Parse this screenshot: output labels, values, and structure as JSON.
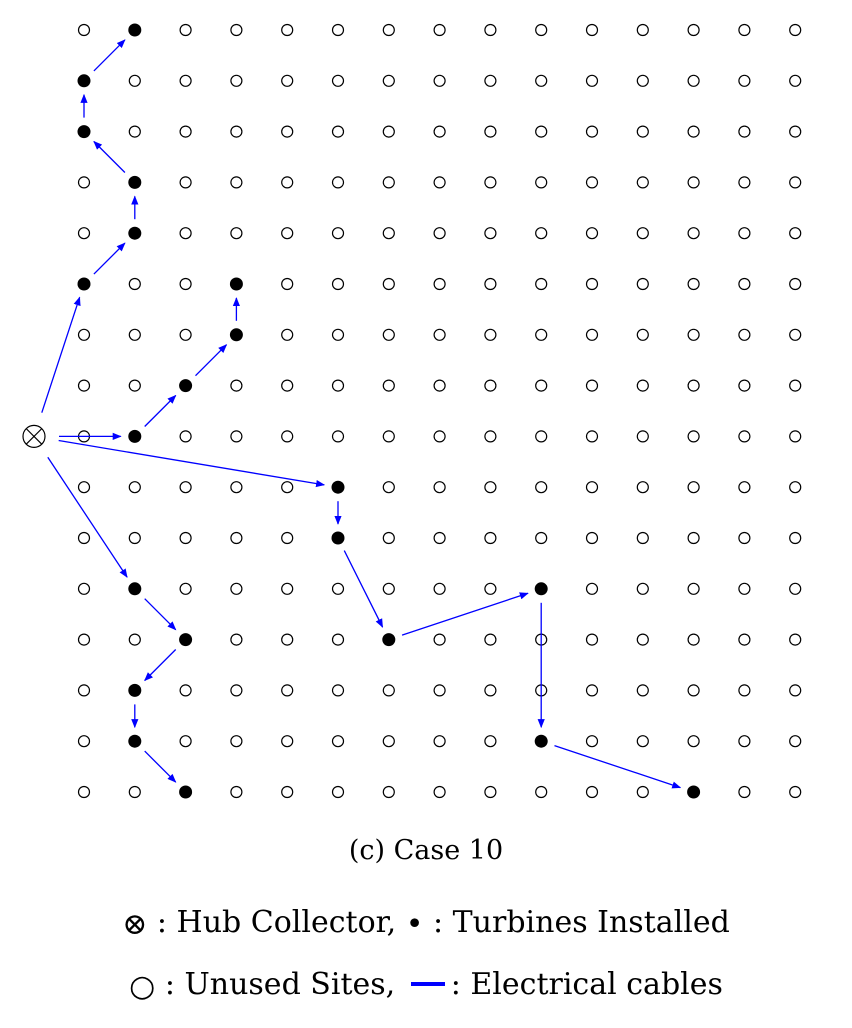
{
  "figure": {
    "caption": "(c) Case 10"
  },
  "grid": {
    "cols": 15,
    "rows": 16
  },
  "hub": {
    "symbol": "⊗",
    "row_position": 8.0
  },
  "turbines": [
    [
      1,
      0
    ],
    [
      0,
      1
    ],
    [
      0,
      2
    ],
    [
      1,
      3
    ],
    [
      1,
      4
    ],
    [
      0,
      5
    ],
    [
      3,
      5
    ],
    [
      3,
      6
    ],
    [
      2,
      7
    ],
    [
      1,
      8
    ],
    [
      5,
      9
    ],
    [
      5,
      10
    ],
    [
      1,
      11
    ],
    [
      9,
      11
    ],
    [
      2,
      12
    ],
    [
      6,
      12
    ],
    [
      1,
      13
    ],
    [
      1,
      14
    ],
    [
      9,
      14
    ],
    [
      2,
      15
    ],
    [
      12,
      15
    ]
  ],
  "cables": [
    [
      "hub",
      [
        0,
        5
      ]
    ],
    [
      "hub",
      [
        1,
        8
      ]
    ],
    [
      "hub",
      [
        5,
        9
      ]
    ],
    [
      "hub",
      [
        1,
        11
      ]
    ],
    [
      [
        0,
        5
      ],
      [
        1,
        4
      ]
    ],
    [
      [
        1,
        4
      ],
      [
        1,
        3
      ]
    ],
    [
      [
        1,
        3
      ],
      [
        0,
        2
      ]
    ],
    [
      [
        0,
        2
      ],
      [
        0,
        1
      ]
    ],
    [
      [
        0,
        1
      ],
      [
        1,
        0
      ]
    ],
    [
      [
        1,
        8
      ],
      [
        2,
        7
      ]
    ],
    [
      [
        2,
        7
      ],
      [
        3,
        6
      ]
    ],
    [
      [
        3,
        6
      ],
      [
        3,
        5
      ]
    ],
    [
      [
        5,
        9
      ],
      [
        5,
        10
      ]
    ],
    [
      [
        5,
        10
      ],
      [
        6,
        12
      ]
    ],
    [
      [
        6,
        12
      ],
      [
        9,
        11
      ]
    ],
    [
      [
        9,
        11
      ],
      [
        9,
        14
      ]
    ],
    [
      [
        9,
        14
      ],
      [
        12,
        15
      ]
    ],
    [
      [
        1,
        11
      ],
      [
        2,
        12
      ]
    ],
    [
      [
        2,
        12
      ],
      [
        1,
        13
      ]
    ],
    [
      [
        1,
        13
      ],
      [
        1,
        14
      ]
    ],
    [
      [
        1,
        14
      ],
      [
        2,
        15
      ]
    ]
  ],
  "colors": {
    "cable": "#0000ff",
    "turbine": "#000000",
    "unused": "#000000"
  },
  "legend": {
    "hub_symbol": "⊗",
    "hub_label": ": Hub Collector,",
    "turbine_symbol": "•",
    "turbine_label": ": Turbines Installed",
    "unused_symbol": "○",
    "unused_label": ": Unused Sites,",
    "cable_label": ": Electrical cables"
  }
}
